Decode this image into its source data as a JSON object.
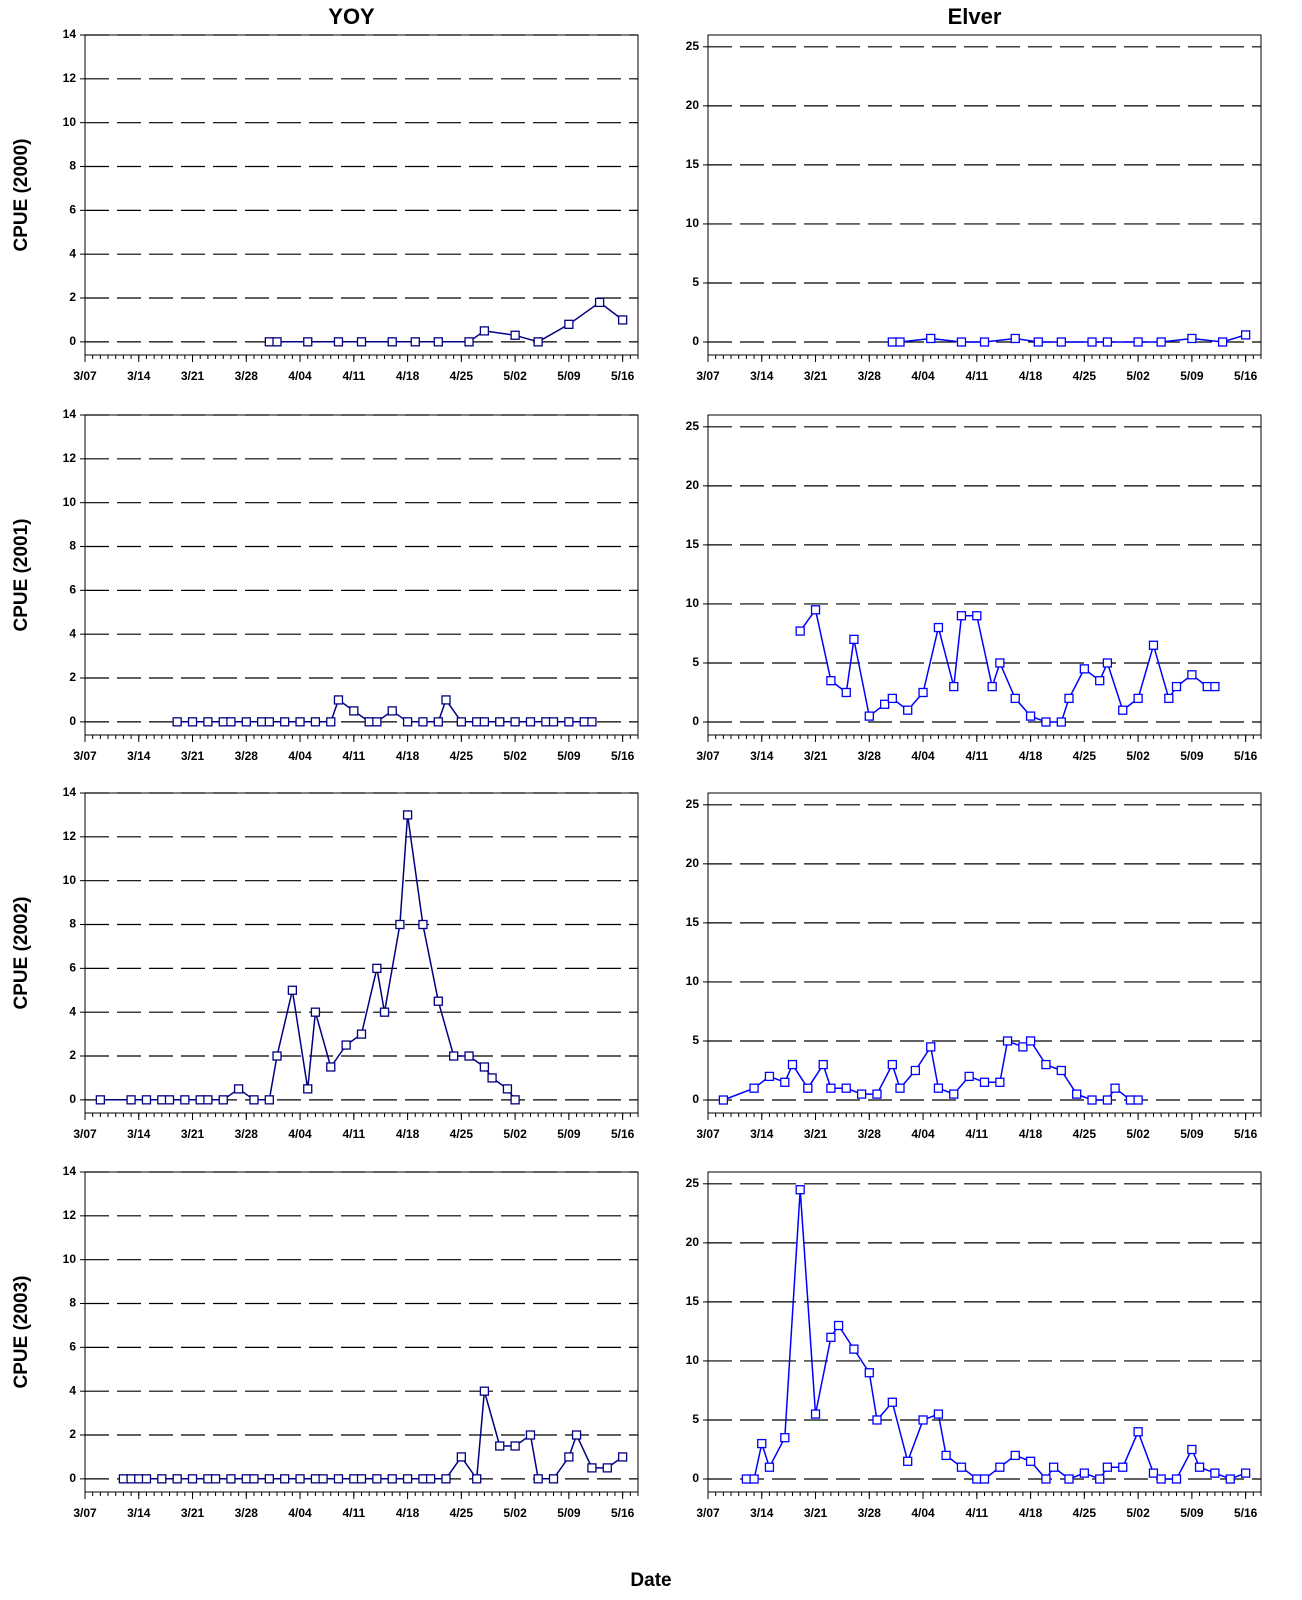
{
  "xlabel": "Date",
  "chart_data": [
    {
      "type": "line",
      "title": "YOY",
      "ylabel": "CPUE (2000)",
      "color": "#000080",
      "x": [
        "3/31",
        "4/01",
        "4/05",
        "4/09",
        "4/12",
        "4/16",
        "4/19",
        "4/22",
        "4/26",
        "4/28",
        "5/02",
        "5/05",
        "5/09",
        "5/13",
        "5/16"
      ],
      "values": [
        0,
        0,
        0,
        0,
        0,
        0,
        0,
        0,
        0,
        0.5,
        0.3,
        0,
        0.8,
        1.8,
        1
      ],
      "xlim": [
        "3/07",
        "5/18"
      ],
      "xticks": [
        "3/07",
        "3/14",
        "3/21",
        "3/28",
        "4/04",
        "4/11",
        "4/18",
        "4/25",
        "5/02",
        "5/09",
        "5/16"
      ],
      "ylim": [
        -0.6,
        14
      ],
      "yticks": [
        0,
        2,
        4,
        6,
        8,
        10,
        12,
        14
      ],
      "grid": true
    },
    {
      "type": "line",
      "title": "Elver",
      "color": "#0000ff",
      "x": [
        "3/31",
        "4/01",
        "4/05",
        "4/09",
        "4/12",
        "4/16",
        "4/19",
        "4/22",
        "4/26",
        "4/28",
        "5/02",
        "5/05",
        "5/09",
        "5/13",
        "5/16"
      ],
      "values": [
        0,
        0,
        0.3,
        0,
        0,
        0.3,
        0,
        0,
        0,
        0,
        0,
        0,
        0.3,
        0,
        0.6
      ],
      "xlim": [
        "3/07",
        "5/18"
      ],
      "xticks": [
        "3/07",
        "3/14",
        "3/21",
        "3/28",
        "4/04",
        "4/11",
        "4/18",
        "4/25",
        "5/02",
        "5/09",
        "5/16"
      ],
      "ylim": [
        -1.1,
        26
      ],
      "yticks": [
        0,
        5,
        10,
        15,
        20,
        25
      ],
      "grid": true
    },
    {
      "type": "line",
      "ylabel": "CPUE (2001)",
      "color": "#000080",
      "x": [
        "3/19",
        "3/21",
        "3/23",
        "3/25",
        "3/26",
        "3/28",
        "3/30",
        "3/31",
        "4/02",
        "4/04",
        "4/06",
        "4/08",
        "4/09",
        "4/11",
        "4/13",
        "4/14",
        "4/16",
        "4/18",
        "4/20",
        "4/22",
        "4/23",
        "4/25",
        "4/27",
        "4/28",
        "4/30",
        "5/02",
        "5/04",
        "5/06",
        "5/07",
        "5/09",
        "5/11",
        "5/12"
      ],
      "values": [
        0,
        0,
        0,
        0,
        0,
        0,
        0,
        0,
        0,
        0,
        0,
        0,
        1,
        0.5,
        0,
        0,
        0.5,
        0,
        0,
        0,
        1,
        0,
        0,
        0,
        0,
        0,
        0,
        0,
        0,
        0,
        0,
        0
      ],
      "xlim": [
        "3/07",
        "5/18"
      ],
      "xticks": [
        "3/07",
        "3/14",
        "3/21",
        "3/28",
        "4/04",
        "4/11",
        "4/18",
        "4/25",
        "5/02",
        "5/09",
        "5/16"
      ],
      "ylim": [
        -0.6,
        14
      ],
      "yticks": [
        0,
        2,
        4,
        6,
        8,
        10,
        12,
        14
      ],
      "grid": true
    },
    {
      "type": "line",
      "color": "#0000ff",
      "x": [
        "3/19",
        "3/21",
        "3/23",
        "3/25",
        "3/26",
        "3/28",
        "3/30",
        "3/31",
        "4/02",
        "4/04",
        "4/06",
        "4/08",
        "4/09",
        "4/11",
        "4/13",
        "4/14",
        "4/16",
        "4/18",
        "4/20",
        "4/22",
        "4/23",
        "4/25",
        "4/27",
        "4/28",
        "4/30",
        "5/02",
        "5/04",
        "5/06",
        "5/07",
        "5/09",
        "5/11",
        "5/12"
      ],
      "values": [
        7.7,
        9.5,
        3.5,
        2.5,
        7,
        0.5,
        1.5,
        2,
        1,
        2.5,
        8,
        3,
        9,
        9,
        3,
        5,
        2,
        0.5,
        0,
        0,
        2,
        4.5,
        3.5,
        5,
        1,
        2,
        6.5,
        2,
        3,
        4,
        3,
        3
      ],
      "xlim": [
        "3/07",
        "5/18"
      ],
      "xticks": [
        "3/07",
        "3/14",
        "3/21",
        "3/28",
        "4/04",
        "4/11",
        "4/18",
        "4/25",
        "5/02",
        "5/09",
        "5/16"
      ],
      "ylim": [
        -1.1,
        26
      ],
      "yticks": [
        0,
        5,
        10,
        15,
        20,
        25
      ],
      "grid": true
    },
    {
      "type": "line",
      "ylabel": "CPUE (2002)",
      "color": "#000080",
      "x": [
        "3/09",
        "3/13",
        "3/15",
        "3/17",
        "3/18",
        "3/20",
        "3/22",
        "3/23",
        "3/25",
        "3/27",
        "3/29",
        "3/31",
        "4/01",
        "4/03",
        "4/05",
        "4/06",
        "4/08",
        "4/10",
        "4/12",
        "4/14",
        "4/15",
        "4/17",
        "4/18",
        "4/20",
        "4/22",
        "4/24",
        "4/26",
        "4/28",
        "4/29",
        "5/01",
        "5/02"
      ],
      "values": [
        0,
        0,
        0,
        0,
        0,
        0,
        0,
        0,
        0,
        0.5,
        0,
        0,
        2,
        5,
        0.5,
        4,
        1.5,
        2.5,
        3,
        6,
        4,
        8,
        13,
        8,
        4.5,
        2,
        2,
        1.5,
        1,
        0.5,
        0
      ],
      "xlim": [
        "3/07",
        "5/18"
      ],
      "xticks": [
        "3/07",
        "3/14",
        "3/21",
        "3/28",
        "4/04",
        "4/11",
        "4/18",
        "4/25",
        "5/02",
        "5/09",
        "5/16"
      ],
      "ylim": [
        -0.6,
        14
      ],
      "yticks": [
        0,
        2,
        4,
        6,
        8,
        10,
        12,
        14
      ],
      "grid": true
    },
    {
      "type": "line",
      "color": "#0000ff",
      "x": [
        "3/09",
        "3/13",
        "3/15",
        "3/17",
        "3/18",
        "3/20",
        "3/22",
        "3/23",
        "3/25",
        "3/27",
        "3/29",
        "3/31",
        "4/01",
        "4/03",
        "4/05",
        "4/06",
        "4/08",
        "4/10",
        "4/12",
        "4/14",
        "4/15",
        "4/17",
        "4/18",
        "4/20",
        "4/22",
        "4/24",
        "4/26",
        "4/28",
        "4/29",
        "5/01",
        "5/02"
      ],
      "values": [
        0,
        1,
        2,
        1.5,
        3,
        1,
        3,
        1,
        1,
        0.5,
        0.5,
        3,
        1,
        2.5,
        4.5,
        1,
        0.5,
        2,
        1.5,
        1.5,
        5,
        4.5,
        5,
        3,
        2.5,
        0.5,
        0,
        0,
        1,
        0,
        0
      ],
      "xlim": [
        "3/07",
        "5/18"
      ],
      "xticks": [
        "3/07",
        "3/14",
        "3/21",
        "3/28",
        "4/04",
        "4/11",
        "4/18",
        "4/25",
        "5/02",
        "5/09",
        "5/16"
      ],
      "ylim": [
        -1.1,
        26
      ],
      "yticks": [
        0,
        5,
        10,
        15,
        20,
        25
      ],
      "grid": true
    },
    {
      "type": "line",
      "ylabel": "CPUE (2003)",
      "color": "#000080",
      "x": [
        "3/12",
        "3/13",
        "3/14",
        "3/15",
        "3/17",
        "3/19",
        "3/21",
        "3/23",
        "3/24",
        "3/26",
        "3/28",
        "3/29",
        "3/31",
        "4/02",
        "4/04",
        "4/06",
        "4/07",
        "4/09",
        "4/11",
        "4/12",
        "4/14",
        "4/16",
        "4/18",
        "4/20",
        "4/21",
        "4/23",
        "4/25",
        "4/27",
        "4/28",
        "4/30",
        "5/02",
        "5/04",
        "5/05",
        "5/07",
        "5/09",
        "5/10",
        "5/12",
        "5/14",
        "5/16"
      ],
      "values": [
        0,
        0,
        0,
        0,
        0,
        0,
        0,
        0,
        0,
        0,
        0,
        0,
        0,
        0,
        0,
        0,
        0,
        0,
        0,
        0,
        0,
        0,
        0,
        0,
        0,
        0,
        1,
        0,
        4,
        1.5,
        1.5,
        2,
        0,
        0,
        1,
        2,
        0.5,
        0.5,
        1
      ],
      "xlim": [
        "3/07",
        "5/18"
      ],
      "xticks": [
        "3/07",
        "3/14",
        "3/21",
        "3/28",
        "4/04",
        "4/11",
        "4/18",
        "4/25",
        "5/02",
        "5/09",
        "5/16"
      ],
      "ylim": [
        -0.6,
        14
      ],
      "yticks": [
        0,
        2,
        4,
        6,
        8,
        10,
        12,
        14
      ],
      "grid": true
    },
    {
      "type": "line",
      "color": "#0000ff",
      "x": [
        "3/12",
        "3/13",
        "3/14",
        "3/15",
        "3/17",
        "3/19",
        "3/21",
        "3/23",
        "3/24",
        "3/26",
        "3/28",
        "3/29",
        "3/31",
        "4/02",
        "4/04",
        "4/06",
        "4/07",
        "4/09",
        "4/11",
        "4/12",
        "4/14",
        "4/16",
        "4/18",
        "4/20",
        "4/21",
        "4/23",
        "4/25",
        "4/27",
        "4/28",
        "4/30",
        "5/02",
        "5/04",
        "5/05",
        "5/07",
        "5/09",
        "5/10",
        "5/12",
        "5/14",
        "5/16"
      ],
      "values": [
        0,
        0,
        3,
        1,
        3.5,
        24.5,
        5.5,
        12,
        13,
        11,
        9,
        5,
        6.5,
        1.5,
        5,
        5.5,
        2,
        1,
        0,
        0,
        1,
        2,
        1.5,
        0,
        1,
        0,
        0.5,
        0,
        1,
        1,
        4,
        0.5,
        0,
        0,
        2.5,
        1,
        0.5,
        0,
        0.5
      ],
      "xlim": [
        "3/07",
        "5/18"
      ],
      "xticks": [
        "3/07",
        "3/14",
        "3/21",
        "3/28",
        "4/04",
        "4/11",
        "4/18",
        "4/25",
        "5/02",
        "5/09",
        "5/16"
      ],
      "ylim": [
        -1.1,
        26
      ],
      "yticks": [
        0,
        5,
        10,
        15,
        20,
        25
      ],
      "grid": true
    }
  ]
}
